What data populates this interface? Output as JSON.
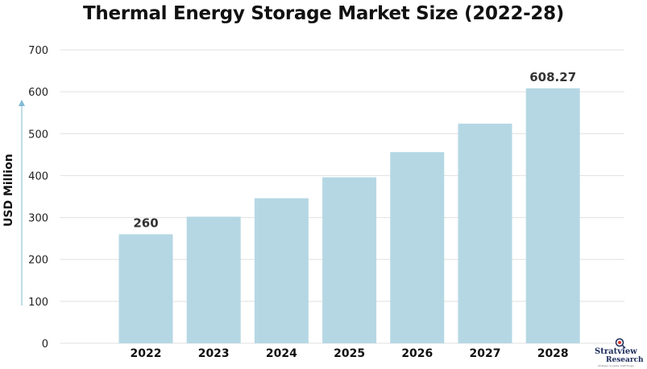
{
  "chart_data": {
    "type": "bar",
    "title": "Thermal Energy Storage Market Size (2022-28)",
    "xlabel": "",
    "ylabel": "USD Million",
    "categories": [
      "2022",
      "2023",
      "2024",
      "2025",
      "2026",
      "2027",
      "2028"
    ],
    "values": [
      260,
      302,
      346,
      396,
      456,
      524,
      608.27
    ],
    "data_labels": [
      {
        "category": "2022",
        "text": "260"
      },
      {
        "category": "2028",
        "text": "608.27"
      }
    ],
    "ylim": [
      0,
      700
    ],
    "yticks": [
      0,
      100,
      200,
      300,
      400,
      500,
      600,
      700
    ],
    "grid": true,
    "bar_color": "#b5d7e4"
  },
  "watermark": {
    "brand_line1": "Stratview",
    "brand_line2": "Research",
    "tagline": "Strategic Insights, Definitively"
  },
  "colors": {
    "grid": "#e0e0e0",
    "axis_text": "#222222",
    "arrow": "#7fb8d3"
  }
}
